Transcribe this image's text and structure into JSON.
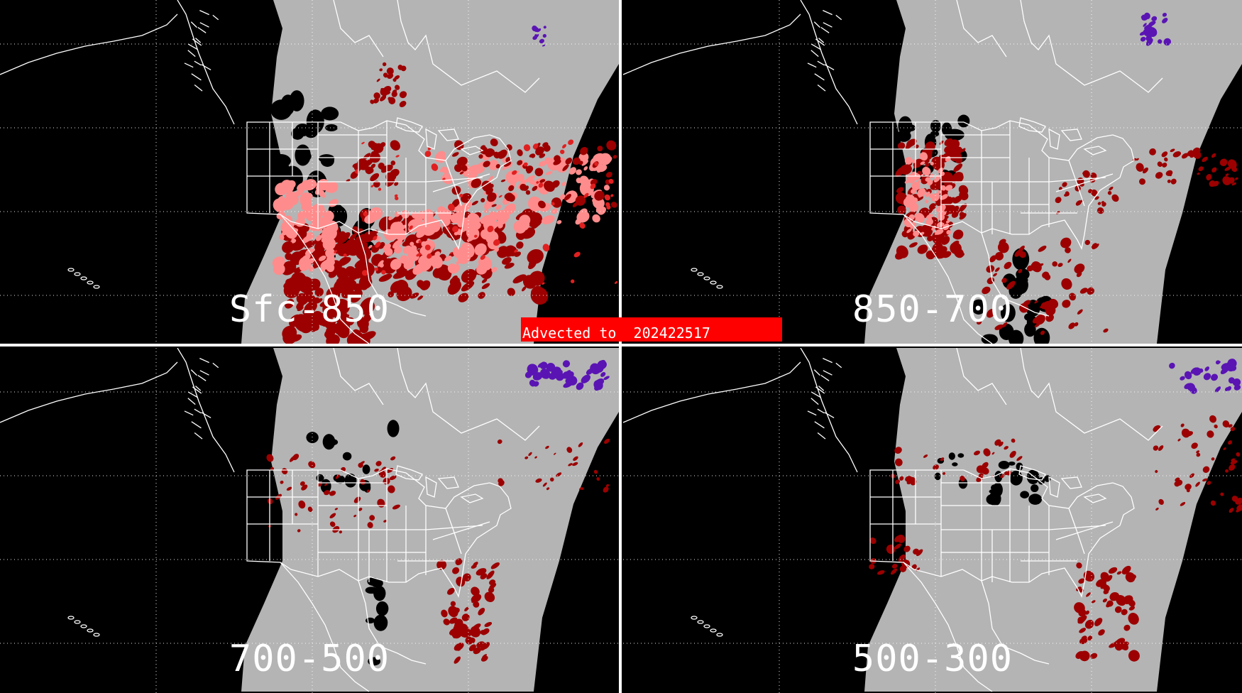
{
  "banner": {
    "text": "Advected to  202422517",
    "color": "#ff0000"
  },
  "panels": [
    {
      "id": "sfc-850",
      "label": "Sfc-850",
      "position": "top-left"
    },
    {
      "id": "850-700",
      "label": "850-700",
      "position": "top-right"
    },
    {
      "id": "700-500",
      "label": "700-500",
      "position": "bottom-left"
    },
    {
      "id": "500-300",
      "label": "500-300",
      "position": "bottom-right"
    }
  ],
  "colors": {
    "background": "#000000",
    "satellite_coverage": "#b4b4b4",
    "boundaries": "#ffffff",
    "gridlines": "#ffffff",
    "dark_red": "#9c0000",
    "light_red": "#ff8c8c",
    "red": "#e02020",
    "purple": "#5a14b4",
    "missing": "#000000"
  },
  "icons": {
    "map": "satellite-map-icon"
  }
}
